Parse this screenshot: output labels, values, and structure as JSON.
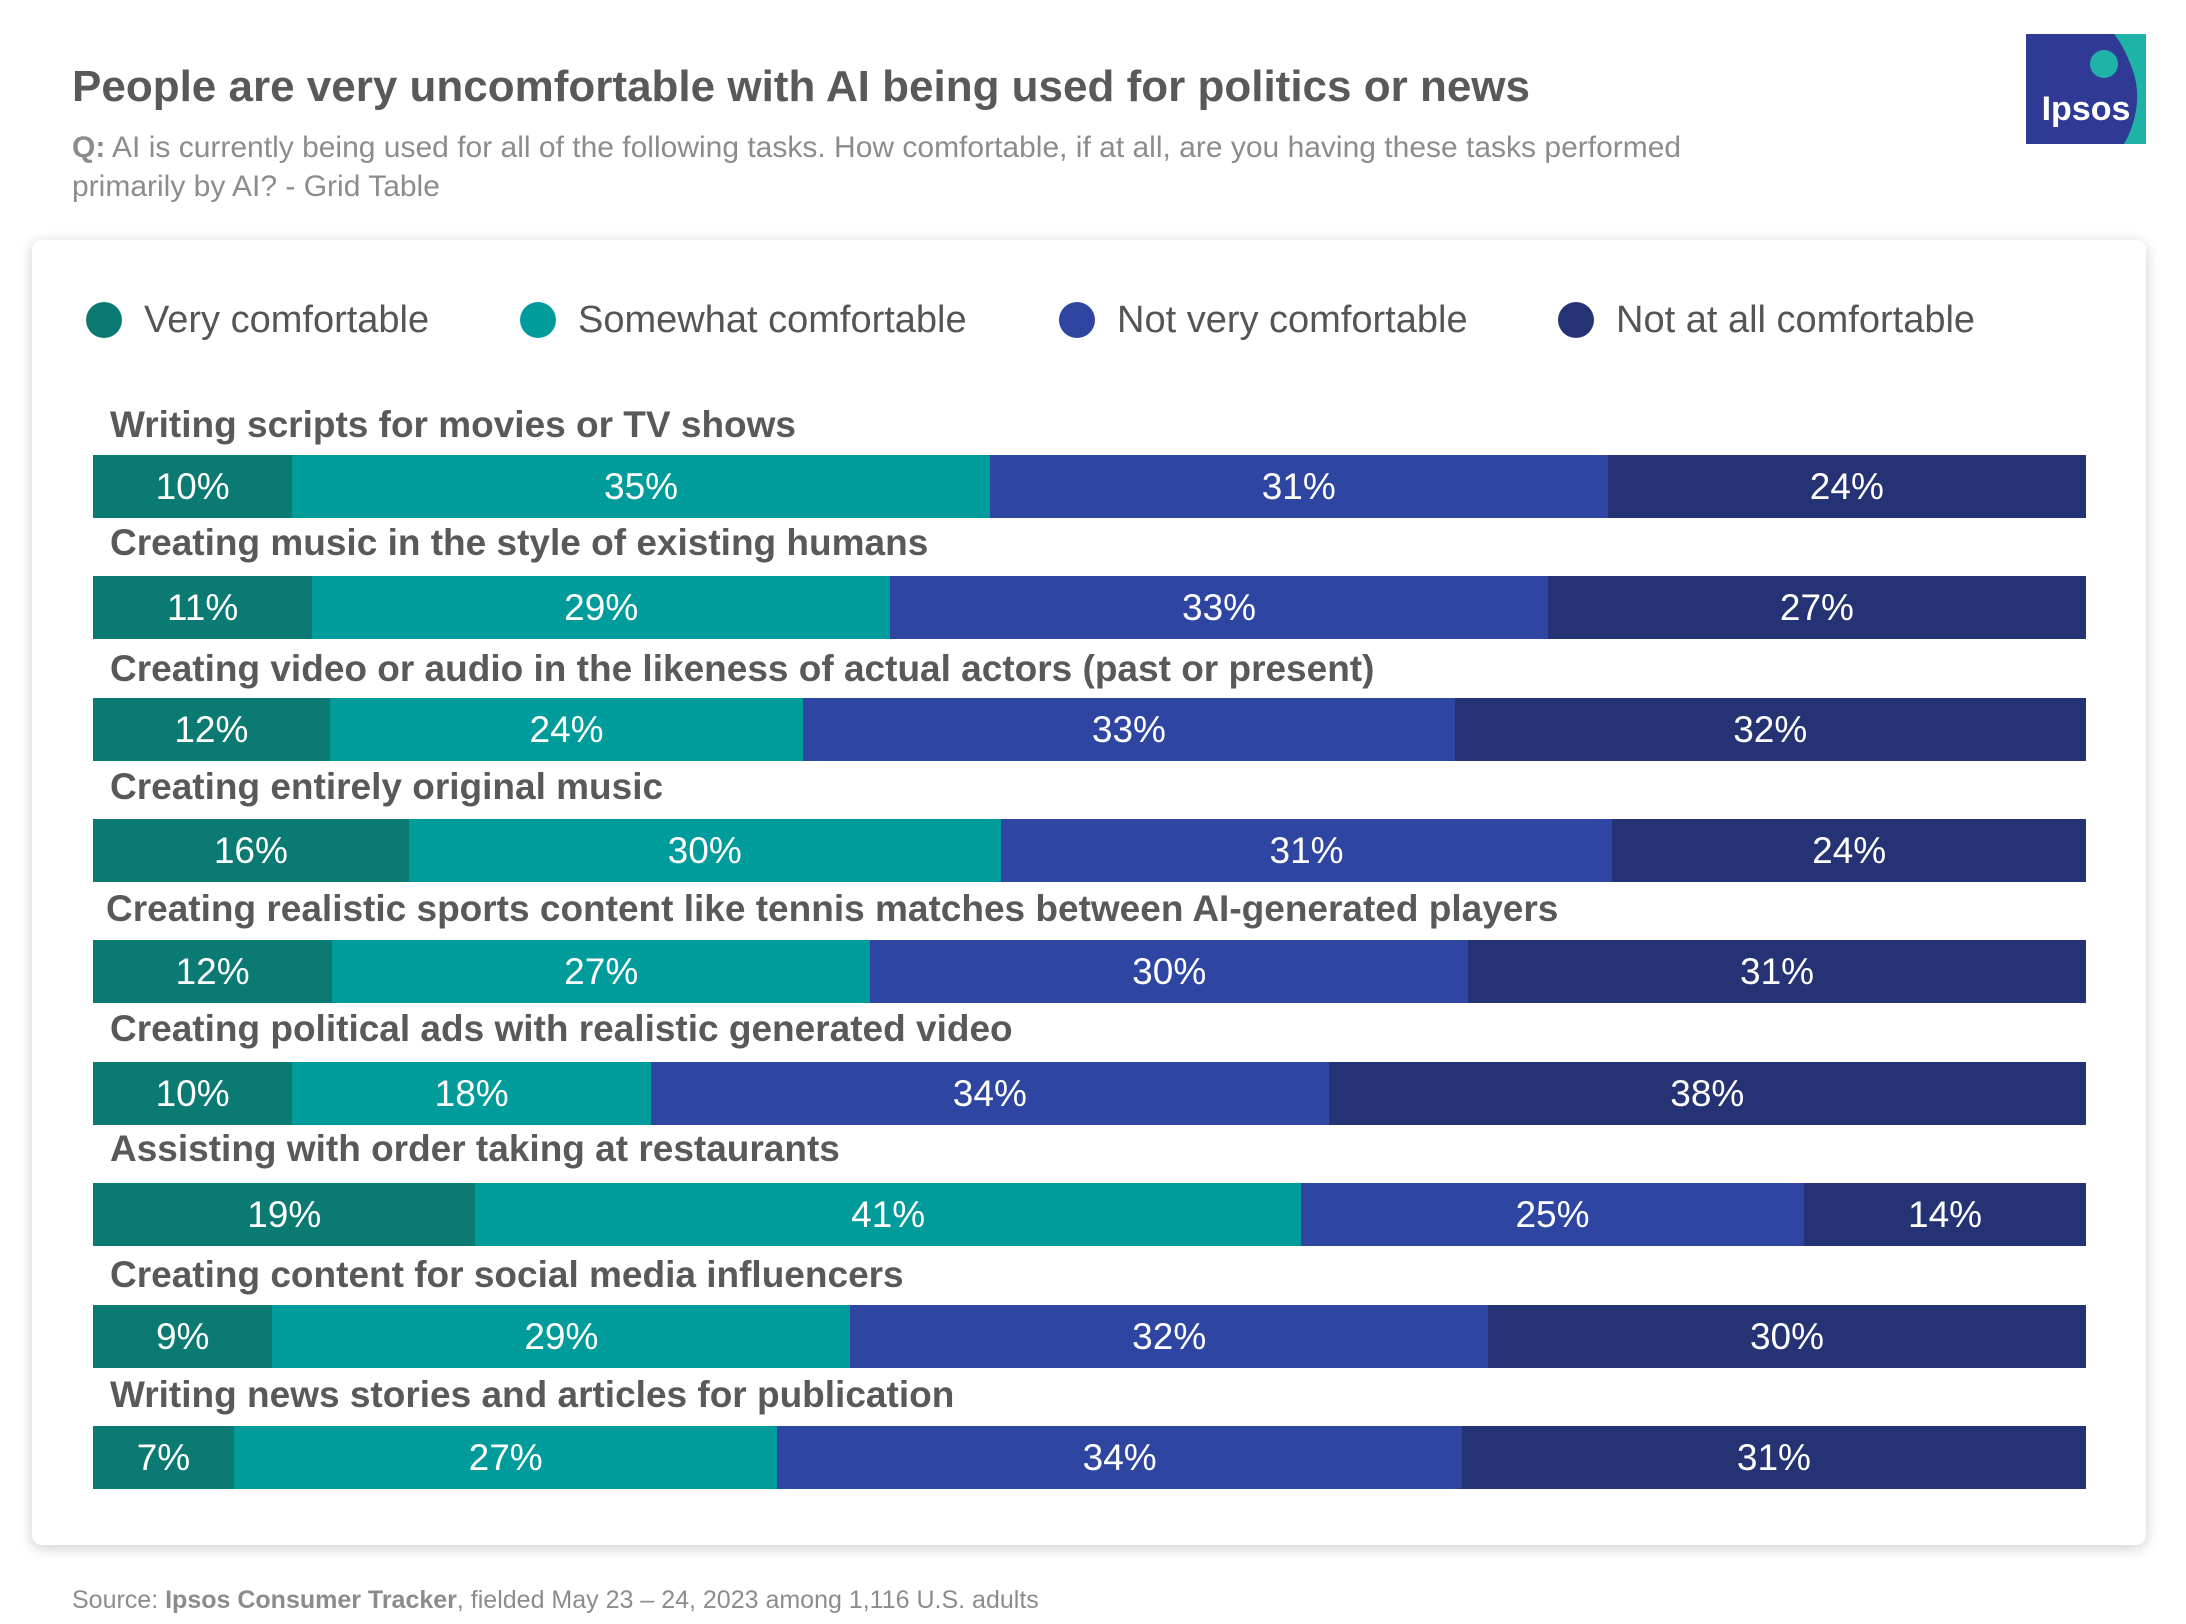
{
  "header": {
    "title": "People are very uncomfortable with AI being used for politics or news",
    "question_label": "Q:",
    "question_text": "AI is currently being used for all of the following tasks. How comfortable, if at all, are you having these tasks performed primarily by AI? - Grid Table",
    "logo_text": "Ipsos"
  },
  "colors": {
    "very": "#0b7a72",
    "somewhat": "#009b9b",
    "not_very": "#2e46a2",
    "not_at_all": "#253274",
    "logo_teal": "#1fb3a8",
    "logo_blue": "#2f3a94"
  },
  "chart_data": {
    "type": "bar",
    "orientation": "horizontal",
    "stacked": true,
    "xlim": [
      0,
      100
    ],
    "legend_position": "top",
    "series_names": [
      "Very comfortable",
      "Somewhat comfortable",
      "Not very comfortable",
      "Not at all comfortable"
    ],
    "rows": [
      {
        "label": "Writing scripts for movies or TV shows",
        "values": [
          10,
          35,
          31,
          24
        ]
      },
      {
        "label": "Creating music in the style of existing humans",
        "values": [
          11,
          29,
          33,
          27
        ]
      },
      {
        "label": "Creating video or audio in the likeness of actual actors (past or present)",
        "values": [
          12,
          24,
          33,
          32
        ]
      },
      {
        "label": "Creating entirely original music",
        "values": [
          16,
          30,
          31,
          24
        ]
      },
      {
        "label": "Creating realistic sports content like tennis matches between AI-generated players",
        "values": [
          12,
          27,
          30,
          31
        ]
      },
      {
        "label": "Creating political ads with realistic generated video",
        "values": [
          10,
          18,
          34,
          38
        ]
      },
      {
        "label": "Assisting with order taking at restaurants",
        "values": [
          19,
          41,
          25,
          14
        ]
      },
      {
        "label": "Creating content for social media influencers",
        "values": [
          9,
          29,
          32,
          30
        ]
      },
      {
        "label": "Writing news stories and articles for publication",
        "values": [
          7,
          27,
          34,
          31
        ]
      }
    ]
  },
  "footer": {
    "source_prefix": "Source: ",
    "source_name": "Ipsos Consumer Tracker",
    "source_rest": ", fielded May 23 – 24, 2023 among 1,116 U.S. adults"
  }
}
